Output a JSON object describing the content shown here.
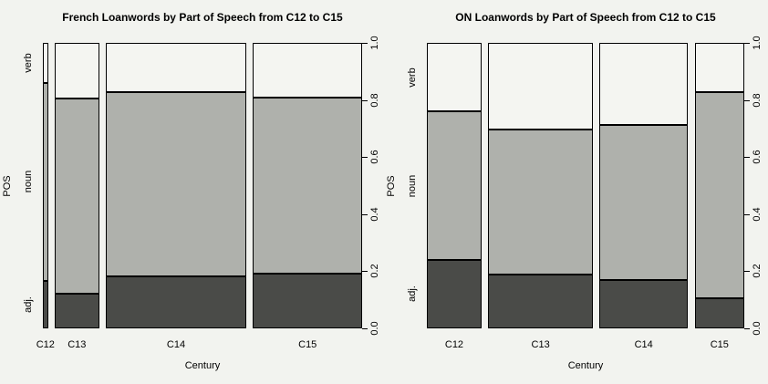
{
  "figure": {
    "background_color": "#F2F3EF",
    "border_color": "#000000",
    "segment_colors": {
      "verb": "#F4F5F1",
      "noun": "#AFB1AC",
      "adj": "#4A4B48"
    },
    "y_tick_labels": [
      "0.0",
      "0.2",
      "0.4",
      "0.6",
      "0.8",
      "1.0"
    ]
  },
  "chart_data": [
    {
      "type": "mosaic",
      "title": "French Loanwords by Part of Speech from C12 to C15",
      "xlabel": "Century",
      "ylabel": "POS",
      "pos_categories": [
        "adj.",
        "noun",
        "verb"
      ],
      "y_ticks": [
        0.0,
        0.2,
        0.4,
        0.6,
        0.8,
        1.0
      ],
      "ylim": [
        0,
        1
      ],
      "legend": "none",
      "grid": false,
      "columns": [
        {
          "label": "C12",
          "width_frac": 0.017,
          "adj": 0.167,
          "noun": 0.693,
          "verb": 0.14
        },
        {
          "label": "C13",
          "width_frac": 0.148,
          "adj": 0.12,
          "noun": 0.686,
          "verb": 0.194
        },
        {
          "label": "C14",
          "width_frac": 0.47,
          "adj": 0.182,
          "noun": 0.646,
          "verb": 0.172
        },
        {
          "label": "C15",
          "width_frac": 0.365,
          "adj": 0.191,
          "noun": 0.618,
          "verb": 0.191
        }
      ]
    },
    {
      "type": "mosaic",
      "title": "ON Loanwords by Part of Speech from C12 to C15",
      "xlabel": "Century",
      "ylabel": "POS",
      "pos_categories": [
        "adj.",
        "noun",
        "verb"
      ],
      "y_ticks": [
        0.0,
        0.2,
        0.4,
        0.6,
        0.8,
        1.0
      ],
      "ylim": [
        0,
        1
      ],
      "legend": "none",
      "grid": false,
      "columns": [
        {
          "label": "C12",
          "width_frac": 0.184,
          "adj": 0.24,
          "noun": 0.519,
          "verb": 0.241
        },
        {
          "label": "C13",
          "width_frac": 0.351,
          "adj": 0.189,
          "noun": 0.506,
          "verb": 0.305
        },
        {
          "label": "C14",
          "width_frac": 0.297,
          "adj": 0.168,
          "noun": 0.544,
          "verb": 0.288
        },
        {
          "label": "C15",
          "width_frac": 0.167,
          "adj": 0.104,
          "noun": 0.722,
          "verb": 0.174
        }
      ]
    }
  ]
}
